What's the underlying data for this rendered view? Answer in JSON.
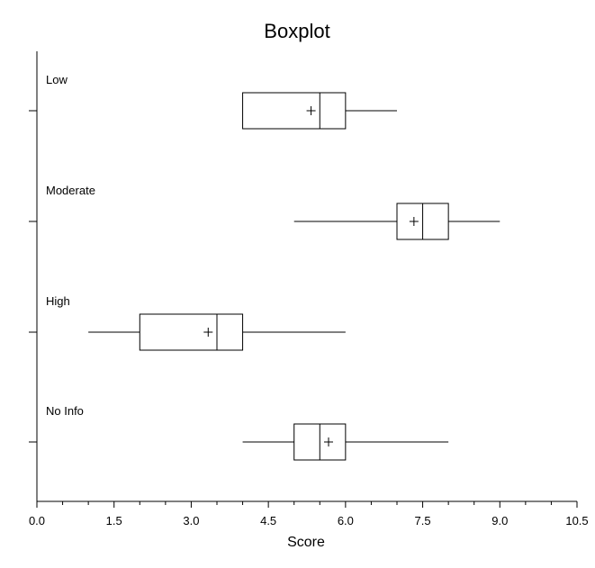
{
  "chart_data": {
    "type": "boxplot",
    "title": "Boxplot",
    "xlabel": "Score",
    "ylabel": "",
    "xlim": [
      0,
      10.5
    ],
    "x_ticks": [
      "0.0",
      "1.5",
      "3.0",
      "4.5",
      "6.0",
      "7.5",
      "9.0",
      "10.5"
    ],
    "x_tick_values": [
      0,
      1.5,
      3.0,
      4.5,
      6.0,
      7.5,
      9.0,
      10.5
    ],
    "grid": false,
    "orientation": "horizontal",
    "series": [
      {
        "name": "Low",
        "whisker_low": 4.0,
        "q1": 4.0,
        "median": 5.5,
        "q3": 6.0,
        "whisker_high": 7.0,
        "mean": 5.33
      },
      {
        "name": "Moderate",
        "whisker_low": 5.0,
        "q1": 7.0,
        "median": 7.5,
        "q3": 8.0,
        "whisker_high": 9.0,
        "mean": 7.33
      },
      {
        "name": "High",
        "whisker_low": 1.0,
        "q1": 2.0,
        "median": 3.5,
        "q3": 4.0,
        "whisker_high": 6.0,
        "mean": 3.33
      },
      {
        "name": "No Info",
        "whisker_low": 4.0,
        "q1": 5.0,
        "median": 5.5,
        "q3": 6.0,
        "whisker_high": 8.0,
        "mean": 5.67
      }
    ],
    "colors": {
      "box_stroke": "#000000",
      "box_fill": "#ffffff"
    }
  }
}
